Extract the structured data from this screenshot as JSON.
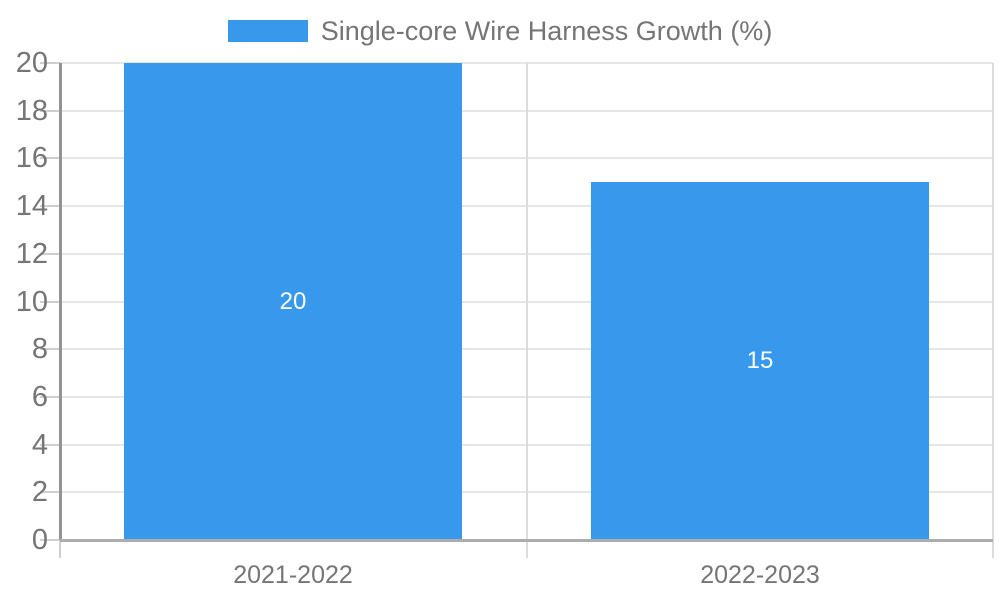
{
  "legend": {
    "label": "Single-core Wire Harness Growth (%)",
    "swatch_color": "#3898ec"
  },
  "chart_data": {
    "type": "bar",
    "title": "",
    "xlabel": "",
    "ylabel": "",
    "categories": [
      "2021-2022",
      "2022-2023"
    ],
    "series": [
      {
        "name": "Single-core Wire Harness Growth (%)",
        "values": [
          20,
          15
        ]
      }
    ],
    "data_labels": [
      "20",
      "15"
    ],
    "ylim": [
      0,
      20
    ],
    "ytick_step": 2,
    "ytick_labels": [
      "0",
      "2",
      "4",
      "6",
      "8",
      "10",
      "12",
      "14",
      "16",
      "18",
      "20"
    ],
    "grid": true,
    "legend_position": "top",
    "bar_color": "#3898ec",
    "bar_label_color": "#ffffff",
    "axis_label_color": "#757575",
    "gridline_color": "#e6e6e6",
    "background_color": "#ffffff"
  }
}
